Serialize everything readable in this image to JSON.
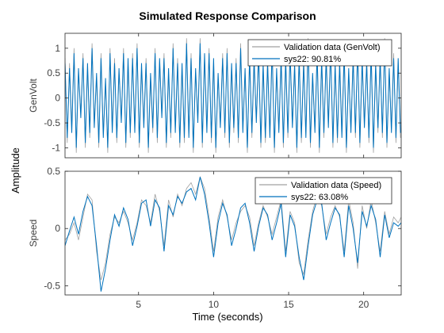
{
  "figure": {
    "title": "Simulated Response Comparison",
    "shared_ylabel": "Amplitude",
    "xlabel": "Time (seconds)"
  },
  "chart_data": [
    {
      "type": "line",
      "ylabel": "GenVolt",
      "xlim": [
        0.1,
        22.5
      ],
      "ylim": [
        -1.2,
        1.3
      ],
      "xticks": [
        5,
        10,
        15,
        20
      ],
      "yticks": [
        -1,
        -0.5,
        0,
        0.5,
        1
      ],
      "ytick_labels": [
        "-1",
        "-0.5",
        "0",
        "0.5",
        "1"
      ],
      "grid": false,
      "legend_position": "top-right",
      "series": [
        {
          "name": "Validation data (GenVolt)",
          "color": "#a0a0a0",
          "x": [
            0.1,
            0.25,
            0.4,
            0.55,
            0.7,
            0.85,
            1.0,
            1.15,
            1.3,
            1.45,
            1.6,
            1.75,
            1.9,
            2.05,
            2.2,
            2.35,
            2.5,
            2.65,
            2.8,
            2.95,
            3.1,
            3.25,
            3.4,
            3.55,
            3.7,
            3.85,
            4.0,
            4.15,
            4.3,
            4.45,
            4.6,
            4.75,
            4.9,
            5.05,
            5.2,
            5.35,
            5.5,
            5.65,
            5.8,
            5.95,
            6.1,
            6.25,
            6.4,
            6.55,
            6.7,
            6.85,
            7.0,
            7.15,
            7.3,
            7.45,
            7.6,
            7.75,
            7.9,
            8.05,
            8.2,
            8.35,
            8.5,
            8.65,
            8.8,
            8.95,
            9.1,
            9.25,
            9.4,
            9.55,
            9.7,
            9.85,
            10.0,
            10.15,
            10.3,
            10.45,
            10.6,
            10.75,
            10.9,
            11.05,
            11.2,
            11.35,
            11.5,
            11.65,
            11.8,
            11.95,
            12.1,
            12.25,
            12.4,
            12.55,
            12.7,
            12.85,
            13.0,
            13.15,
            13.3,
            13.45,
            13.6,
            13.75,
            13.9,
            14.05,
            14.2,
            14.35,
            14.5,
            14.65,
            14.8,
            14.95,
            15.1,
            15.25,
            15.4,
            15.55,
            15.7,
            15.85,
            16.0,
            16.15,
            16.3,
            16.45,
            16.6,
            16.75,
            16.9,
            17.05,
            17.2,
            17.35,
            17.5,
            17.65,
            17.8,
            17.95,
            18.1,
            18.25,
            18.4,
            18.55,
            18.7,
            18.85,
            19.0,
            19.15,
            19.3,
            19.45,
            19.6,
            19.75,
            19.9,
            20.05,
            20.2,
            20.35,
            20.5,
            20.65,
            20.8,
            20.95,
            21.1,
            21.25,
            21.4,
            21.55,
            21.7,
            21.85,
            22.0,
            22.15,
            22.3,
            22.45
          ],
          "y": [
            0.8,
            -0.9,
            0.7,
            -0.6,
            1.0,
            -1.1,
            0.5,
            -0.3,
            0.9,
            -1.0,
            0.6,
            -0.8,
            1.1,
            -0.5,
            0.4,
            -1.0,
            0.9,
            -0.7,
            0.3,
            -1.1,
            1.0,
            -0.6,
            0.8,
            -0.9,
            0.5,
            -0.4,
            1.0,
            -1.0,
            0.7,
            -0.8,
            0.9,
            -0.6,
            1.1,
            -1.0,
            0.6,
            -0.5,
            0.8,
            -1.1,
            0.4,
            -0.7,
            1.0,
            -0.9,
            0.7,
            -0.3,
            0.9,
            -1.0,
            0.5,
            -0.8,
            1.1,
            -0.6,
            0.8,
            -1.0,
            0.6,
            -0.9,
            1.2,
            -0.7,
            0.9,
            -1.1,
            0.5,
            -0.4,
            1.2,
            -1.0,
            0.8,
            -0.6,
            1.0,
            -0.9,
            0.7,
            -1.1,
            0.4,
            -0.5,
            0.9,
            -0.8,
            1.0,
            -1.0,
            0.6,
            -0.7,
            0.8,
            -0.9,
            1.1,
            -0.6,
            0.5,
            -1.1,
            0.9,
            -0.8,
            0.7,
            -0.4,
            1.0,
            -1.0,
            0.6,
            -0.9,
            0.8,
            -0.7,
            1.1,
            -1.1,
            0.5,
            -0.6,
            0.9,
            -1.0,
            0.7,
            -0.8,
            1.0,
            -0.5,
            0.6,
            -1.1,
            0.9,
            -0.9,
            0.8,
            -0.7,
            1.2,
            -1.0,
            0.4,
            -0.6,
            1.0,
            -1.1,
            0.7,
            -0.8,
            0.9,
            -0.5,
            1.1,
            -1.0,
            0.6,
            -0.9,
            0.8,
            -0.7,
            1.0,
            -1.1,
            0.5,
            -0.6,
            0.9,
            -0.8,
            1.1,
            -1.0,
            0.7,
            -0.5,
            0.8,
            -0.9,
            1.0,
            -1.1,
            0.6,
            -0.7,
            0.9,
            -0.8,
            1.2,
            -1.0,
            0.5,
            -0.6,
            0.9,
            -0.9,
            0.7,
            -0.8
          ]
        },
        {
          "name": "sys22: 90.81%",
          "color": "#0072bd",
          "x": [
            0.1,
            0.25,
            0.4,
            0.55,
            0.7,
            0.85,
            1.0,
            1.15,
            1.3,
            1.45,
            1.6,
            1.75,
            1.9,
            2.05,
            2.2,
            2.35,
            2.5,
            2.65,
            2.8,
            2.95,
            3.1,
            3.25,
            3.4,
            3.55,
            3.7,
            3.85,
            4.0,
            4.15,
            4.3,
            4.45,
            4.6,
            4.75,
            4.9,
            5.05,
            5.2,
            5.35,
            5.5,
            5.65,
            5.8,
            5.95,
            6.1,
            6.25,
            6.4,
            6.55,
            6.7,
            6.85,
            7.0,
            7.15,
            7.3,
            7.45,
            7.6,
            7.75,
            7.9,
            8.05,
            8.2,
            8.35,
            8.5,
            8.65,
            8.8,
            8.95,
            9.1,
            9.25,
            9.4,
            9.55,
            9.7,
            9.85,
            10.0,
            10.15,
            10.3,
            10.45,
            10.6,
            10.75,
            10.9,
            11.05,
            11.2,
            11.35,
            11.5,
            11.65,
            11.8,
            11.95,
            12.1,
            12.25,
            12.4,
            12.55,
            12.7,
            12.85,
            13.0,
            13.15,
            13.3,
            13.45,
            13.6,
            13.75,
            13.9,
            14.05,
            14.2,
            14.35,
            14.5,
            14.65,
            14.8,
            14.95,
            15.1,
            15.25,
            15.4,
            15.55,
            15.7,
            15.85,
            16.0,
            16.15,
            16.3,
            16.45,
            16.6,
            16.75,
            16.9,
            17.05,
            17.2,
            17.35,
            17.5,
            17.65,
            17.8,
            17.95,
            18.1,
            18.25,
            18.4,
            18.55,
            18.7,
            18.85,
            19.0,
            19.15,
            19.3,
            19.45,
            19.6,
            19.75,
            19.9,
            20.05,
            20.2,
            20.35,
            20.5,
            20.65,
            20.8,
            20.95,
            21.1,
            21.25,
            21.4,
            21.55,
            21.7,
            21.85,
            22.0,
            22.15,
            22.3,
            22.45
          ],
          "y": [
            0.7,
            -0.8,
            0.6,
            -0.7,
            0.9,
            -1.0,
            0.6,
            -0.4,
            0.8,
            -0.9,
            0.7,
            -0.7,
            1.0,
            -0.6,
            0.5,
            -0.9,
            0.8,
            -0.8,
            0.4,
            -1.0,
            0.9,
            -0.7,
            0.7,
            -0.8,
            0.6,
            -0.5,
            0.9,
            -0.9,
            0.8,
            -0.7,
            0.8,
            -0.7,
            1.0,
            -0.9,
            0.7,
            -0.6,
            0.7,
            -1.0,
            0.5,
            -0.6,
            0.9,
            -0.8,
            0.8,
            -0.4,
            0.8,
            -0.9,
            0.6,
            -0.7,
            1.0,
            -0.7,
            0.7,
            -0.9,
            0.7,
            -0.8,
            1.1,
            -0.8,
            0.8,
            -1.0,
            0.6,
            -0.5,
            1.1,
            -0.9,
            0.9,
            -0.7,
            0.9,
            -0.8,
            0.8,
            -1.0,
            0.5,
            -0.6,
            0.8,
            -0.7,
            0.9,
            -0.9,
            0.7,
            -0.6,
            0.7,
            -0.8,
            1.0,
            -0.7,
            0.6,
            -1.0,
            0.8,
            -0.7,
            0.8,
            -0.5,
            0.9,
            -0.9,
            0.7,
            -0.8,
            0.7,
            -0.8,
            1.0,
            -1.0,
            0.6,
            -0.7,
            0.8,
            -0.9,
            0.8,
            -0.7,
            0.9,
            -0.6,
            0.7,
            -1.0,
            0.8,
            -0.8,
            0.7,
            -0.8,
            1.1,
            -0.9,
            0.5,
            -0.7,
            0.9,
            -1.0,
            0.8,
            -0.7,
            0.8,
            -0.6,
            1.0,
            -0.9,
            0.7,
            -0.8,
            0.7,
            -0.8,
            0.9,
            -1.0,
            0.6,
            -0.7,
            0.8,
            -0.7,
            1.0,
            -0.9,
            0.8,
            -0.6,
            0.7,
            -0.8,
            0.9,
            -1.0,
            0.7,
            -0.6,
            0.8,
            -0.7,
            1.1,
            -0.9,
            0.6,
            -0.7,
            0.8,
            -0.8,
            0.8,
            -0.7
          ]
        }
      ]
    },
    {
      "type": "line",
      "ylabel": "Speed",
      "xlim": [
        0.1,
        22.5
      ],
      "ylim": [
        -0.58,
        0.5
      ],
      "xticks": [
        5,
        10,
        15,
        20
      ],
      "xtick_labels": [
        "5",
        "10",
        "15",
        "20"
      ],
      "yticks": [
        -0.5,
        0,
        0.5
      ],
      "ytick_labels": [
        "-0.5",
        "0",
        "0.5"
      ],
      "grid": false,
      "legend_position": "top-right",
      "series": [
        {
          "name": "Validation data (Speed)",
          "color": "#a0a0a0",
          "x": [
            0.1,
            0.4,
            0.7,
            1.0,
            1.3,
            1.6,
            1.9,
            2.2,
            2.5,
            2.8,
            3.1,
            3.4,
            3.7,
            4.0,
            4.3,
            4.6,
            4.9,
            5.2,
            5.5,
            5.8,
            6.1,
            6.4,
            6.7,
            7.0,
            7.3,
            7.6,
            7.9,
            8.2,
            8.5,
            8.8,
            9.1,
            9.4,
            9.7,
            10.0,
            10.3,
            10.6,
            10.9,
            11.2,
            11.5,
            11.8,
            12.1,
            12.4,
            12.7,
            13.0,
            13.3,
            13.6,
            13.9,
            14.2,
            14.5,
            14.8,
            15.1,
            15.4,
            15.7,
            16.0,
            16.3,
            16.6,
            16.9,
            17.2,
            17.5,
            17.8,
            18.1,
            18.4,
            18.7,
            19.0,
            19.3,
            19.6,
            19.9,
            20.2,
            20.5,
            20.8,
            21.1,
            21.4,
            21.7,
            22.0,
            22.3,
            22.5
          ],
          "y": [
            -0.1,
            -0.05,
            0.05,
            -0.1,
            0.1,
            0.3,
            0.25,
            -0.2,
            -0.45,
            -0.3,
            -0.05,
            0.1,
            0.05,
            0.15,
            0.05,
            -0.1,
            0.05,
            0.25,
            0.2,
            0.05,
            0.3,
            0.15,
            -0.15,
            0.25,
            0.1,
            0.3,
            0.2,
            0.35,
            0.4,
            0.3,
            0.45,
            0.35,
            0.1,
            -0.2,
            0.1,
            0.25,
            0.1,
            -0.1,
            0.05,
            0.15,
            0.2,
            0.1,
            -0.15,
            0.05,
            0.2,
            0.1,
            -0.05,
            0.1,
            0.25,
            -0.2,
            0.15,
            0.05,
            -0.3,
            -0.4,
            -0.1,
            0.15,
            0.3,
            0.2,
            -0.05,
            0.1,
            0.2,
            0.1,
            -0.2,
            0.25,
            0.05,
            -0.35,
            0.2,
            0.0,
            0.25,
            0.05,
            -0.2,
            0.15,
            -0.05,
            0.1,
            0.05,
            0.1
          ]
        },
        {
          "name": "sys22: 63.08%",
          "color": "#0072bd",
          "x": [
            0.1,
            0.4,
            0.7,
            1.0,
            1.3,
            1.6,
            1.9,
            2.2,
            2.5,
            2.8,
            3.1,
            3.4,
            3.7,
            4.0,
            4.3,
            4.6,
            4.9,
            5.2,
            5.5,
            5.8,
            6.1,
            6.4,
            6.7,
            7.0,
            7.3,
            7.6,
            7.9,
            8.2,
            8.5,
            8.8,
            9.1,
            9.4,
            9.7,
            10.0,
            10.3,
            10.6,
            10.9,
            11.2,
            11.5,
            11.8,
            12.1,
            12.4,
            12.7,
            13.0,
            13.3,
            13.6,
            13.9,
            14.2,
            14.5,
            14.8,
            15.1,
            15.4,
            15.7,
            16.0,
            16.3,
            16.6,
            16.9,
            17.2,
            17.5,
            17.8,
            18.1,
            18.4,
            18.7,
            19.0,
            19.3,
            19.6,
            19.9,
            20.2,
            20.5,
            20.8,
            21.1,
            21.4,
            21.7,
            22.0,
            22.3,
            22.5
          ],
          "y": [
            -0.15,
            -0.02,
            0.1,
            -0.05,
            0.15,
            0.28,
            0.2,
            -0.15,
            -0.55,
            -0.35,
            -0.1,
            0.12,
            0.02,
            0.18,
            0.08,
            -0.15,
            0.02,
            0.22,
            0.25,
            0.02,
            0.25,
            0.18,
            -0.2,
            0.2,
            0.12,
            0.28,
            0.22,
            0.32,
            0.35,
            0.25,
            0.45,
            0.3,
            0.05,
            -0.25,
            0.05,
            0.22,
            0.12,
            -0.15,
            0.0,
            0.18,
            0.22,
            0.05,
            -0.2,
            0.02,
            0.18,
            0.12,
            -0.1,
            0.05,
            0.22,
            -0.25,
            0.12,
            0.02,
            -0.25,
            -0.45,
            -0.15,
            0.12,
            0.25,
            0.22,
            -0.1,
            0.05,
            0.18,
            0.12,
            -0.25,
            0.2,
            0.0,
            -0.3,
            0.15,
            0.02,
            0.2,
            0.08,
            -0.25,
            0.12,
            -0.08,
            0.05,
            0.02,
            0.05
          ]
        }
      ]
    }
  ]
}
